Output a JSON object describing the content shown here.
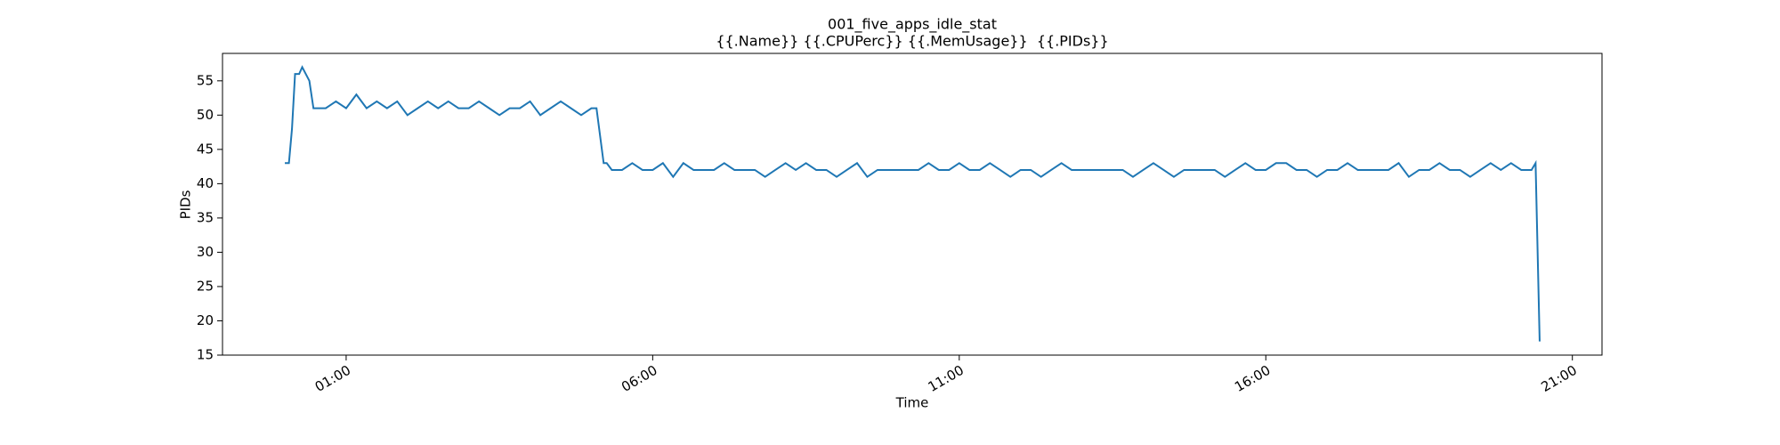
{
  "chart_data": {
    "type": "line",
    "title": "001_five_apps_idle_stat",
    "subtitle": "{{.Name}} {{.CPUPerc}} {{.MemUsage}}  {{.PIDs}}",
    "x_label": "Time",
    "y_label": "PIDs",
    "color": "#1f77b4",
    "xlim": [
      "22:59",
      "21:29"
    ],
    "xticks": [
      "01:00",
      "06:00",
      "11:00",
      "16:00",
      "21:00"
    ],
    "ylim": [
      15,
      59
    ],
    "yticks": [
      15,
      20,
      25,
      30,
      35,
      40,
      45,
      50,
      55
    ],
    "x": [
      "00:00",
      "00:04",
      "00:07",
      "00:10",
      "00:14",
      "00:17",
      "00:24",
      "00:28",
      "00:30",
      "00:40",
      "00:50",
      "01:00",
      "01:10",
      "01:20",
      "01:30",
      "01:40",
      "01:50",
      "02:00",
      "02:10",
      "02:20",
      "02:30",
      "02:40",
      "02:50",
      "03:00",
      "03:10",
      "03:20",
      "03:30",
      "03:40",
      "03:50",
      "04:00",
      "04:10",
      "04:20",
      "04:30",
      "04:40",
      "04:50",
      "05:00",
      "05:05",
      "05:12",
      "05:15",
      "05:20",
      "05:30",
      "05:40",
      "05:50",
      "06:00",
      "06:10",
      "06:20",
      "06:30",
      "06:40",
      "06:50",
      "07:00",
      "07:10",
      "07:20",
      "07:30",
      "07:40",
      "07:50",
      "08:00",
      "08:10",
      "08:20",
      "08:30",
      "08:40",
      "08:50",
      "09:00",
      "09:10",
      "09:20",
      "09:30",
      "09:40",
      "09:50",
      "10:00",
      "10:10",
      "10:20",
      "10:30",
      "10:40",
      "10:50",
      "11:00",
      "11:10",
      "11:20",
      "11:30",
      "11:40",
      "11:50",
      "12:00",
      "12:10",
      "12:20",
      "12:30",
      "12:40",
      "12:50",
      "13:00",
      "13:10",
      "13:20",
      "13:30",
      "13:40",
      "13:50",
      "14:00",
      "14:10",
      "14:20",
      "14:30",
      "14:40",
      "14:50",
      "15:00",
      "15:10",
      "15:20",
      "15:30",
      "15:40",
      "15:50",
      "16:00",
      "16:10",
      "16:20",
      "16:30",
      "16:40",
      "16:50",
      "17:00",
      "17:10",
      "17:20",
      "17:30",
      "17:40",
      "17:50",
      "18:00",
      "18:10",
      "18:20",
      "18:30",
      "18:40",
      "18:50",
      "19:00",
      "19:10",
      "19:20",
      "19:30",
      "19:40",
      "19:50",
      "20:00",
      "20:10",
      "20:20",
      "20:24",
      "20:28"
    ],
    "values": [
      43,
      43,
      48,
      56,
      56,
      57,
      55,
      51,
      51,
      51,
      52,
      51,
      53,
      51,
      52,
      51,
      52,
      50,
      51,
      52,
      51,
      52,
      51,
      51,
      52,
      51,
      50,
      51,
      51,
      52,
      50,
      51,
      52,
      51,
      50,
      51,
      51,
      43,
      43,
      42,
      42,
      43,
      42,
      42,
      43,
      41,
      43,
      42,
      42,
      42,
      43,
      42,
      42,
      42,
      41,
      42,
      43,
      42,
      43,
      42,
      42,
      41,
      42,
      43,
      41,
      42,
      42,
      42,
      42,
      42,
      43,
      42,
      42,
      43,
      42,
      42,
      43,
      42,
      41,
      42,
      42,
      41,
      42,
      43,
      42,
      42,
      42,
      42,
      42,
      42,
      41,
      42,
      43,
      42,
      41,
      42,
      42,
      42,
      42,
      41,
      42,
      43,
      42,
      42,
      43,
      43,
      42,
      42,
      41,
      42,
      42,
      43,
      42,
      42,
      42,
      42,
      43,
      41,
      42,
      42,
      43,
      42,
      42,
      41,
      42,
      43,
      42,
      43,
      42,
      42,
      43,
      17
    ]
  }
}
